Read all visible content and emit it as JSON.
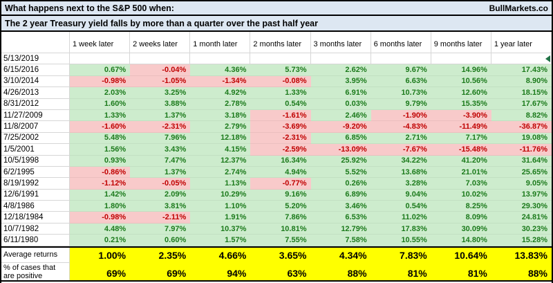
{
  "title": {
    "line1": "What happens next to the S&P 500 when:",
    "line2": "The 2 year Treasury yield falls by more than a quarter over the past half year",
    "brand": "BullMarkets.co"
  },
  "table": {
    "corner_label": "",
    "columns": [
      "1 week later",
      "2 weeks later",
      "1 month later",
      "2 months later",
      "3 months later",
      "6 months later",
      "9 months later",
      "1 year later"
    ],
    "rows": [
      {
        "date": "5/13/2019",
        "values": [
          "",
          "",
          "",
          "",
          "",
          "",
          "",
          ""
        ]
      },
      {
        "date": "6/15/2016",
        "values": [
          "0.67%",
          "-0.04%",
          "4.36%",
          "5.73%",
          "2.62%",
          "9.67%",
          "14.96%",
          "17.43%"
        ]
      },
      {
        "date": "3/10/2014",
        "values": [
          "-0.98%",
          "-1.05%",
          "-1.34%",
          "-0.08%",
          "3.95%",
          "6.63%",
          "10.56%",
          "8.90%"
        ]
      },
      {
        "date": "4/26/2013",
        "values": [
          "2.03%",
          "3.25%",
          "4.92%",
          "1.33%",
          "6.91%",
          "10.73%",
          "12.60%",
          "18.15%"
        ]
      },
      {
        "date": "8/31/2012",
        "values": [
          "1.60%",
          "3.88%",
          "2.78%",
          "0.54%",
          "0.03%",
          "9.79%",
          "15.35%",
          "17.67%"
        ]
      },
      {
        "date": "11/27/2009",
        "values": [
          "1.33%",
          "1.37%",
          "3.18%",
          "-1.61%",
          "2.46%",
          "-1.90%",
          "-3.90%",
          "8.82%"
        ]
      },
      {
        "date": "11/8/2007",
        "values": [
          "-1.60%",
          "-2.31%",
          "2.79%",
          "-3.69%",
          "-9.20%",
          "-4.83%",
          "-11.49%",
          "-36.87%"
        ]
      },
      {
        "date": "7/25/2002",
        "values": [
          "5.48%",
          "7.96%",
          "12.18%",
          "-2.31%",
          "6.85%",
          "2.71%",
          "7.17%",
          "19.08%"
        ]
      },
      {
        "date": "1/5/2001",
        "values": [
          "1.56%",
          "3.43%",
          "4.15%",
          "-2.59%",
          "-13.09%",
          "-7.67%",
          "-15.48%",
          "-11.76%"
        ]
      },
      {
        "date": "10/5/1998",
        "values": [
          "0.93%",
          "7.47%",
          "12.37%",
          "16.34%",
          "25.92%",
          "34.22%",
          "41.20%",
          "31.64%"
        ]
      },
      {
        "date": "6/2/1995",
        "values": [
          "-0.86%",
          "1.37%",
          "2.74%",
          "4.94%",
          "5.52%",
          "13.68%",
          "21.01%",
          "25.65%"
        ]
      },
      {
        "date": "8/19/1992",
        "values": [
          "-1.12%",
          "-0.05%",
          "1.13%",
          "-0.77%",
          "0.26%",
          "3.28%",
          "7.03%",
          "9.05%"
        ]
      },
      {
        "date": "12/6/1991",
        "values": [
          "1.42%",
          "2.09%",
          "10.29%",
          "9.16%",
          "6.89%",
          "9.04%",
          "10.02%",
          "13.97%"
        ]
      },
      {
        "date": "4/8/1986",
        "values": [
          "1.80%",
          "3.81%",
          "1.10%",
          "5.20%",
          "3.46%",
          "0.54%",
          "8.25%",
          "29.30%"
        ]
      },
      {
        "date": "12/18/1984",
        "values": [
          "-0.98%",
          "-2.11%",
          "1.91%",
          "7.86%",
          "6.53%",
          "11.02%",
          "8.09%",
          "24.81%"
        ]
      },
      {
        "date": "10/7/1982",
        "values": [
          "4.48%",
          "7.97%",
          "10.37%",
          "10.81%",
          "12.79%",
          "17.83%",
          "30.09%",
          "30.23%"
        ]
      },
      {
        "date": "6/11/1980",
        "values": [
          "0.21%",
          "0.60%",
          "1.57%",
          "7.55%",
          "7.58%",
          "10.55%",
          "14.80%",
          "15.28%"
        ]
      }
    ],
    "summary": {
      "avg_label": "Average returns",
      "avg_values": [
        "1.00%",
        "2.35%",
        "4.66%",
        "3.65%",
        "4.34%",
        "7.83%",
        "10.64%",
        "13.83%"
      ],
      "pct_label_line1": "% of cases that",
      "pct_label_line2": "are positive",
      "pct_values": [
        "69%",
        "69%",
        "94%",
        "63%",
        "88%",
        "81%",
        "81%",
        "88%"
      ]
    }
  },
  "colors": {
    "positive_bg": "#cdeccd",
    "positive_text": "#1b7a1b",
    "negative_bg": "#f8caca",
    "negative_text": "#c00000",
    "summary_bg": "#ffff00",
    "title_bg": "#dde7f2",
    "gridline": "#d6d6d6",
    "marker_green": "#217346",
    "border": "#000000"
  }
}
